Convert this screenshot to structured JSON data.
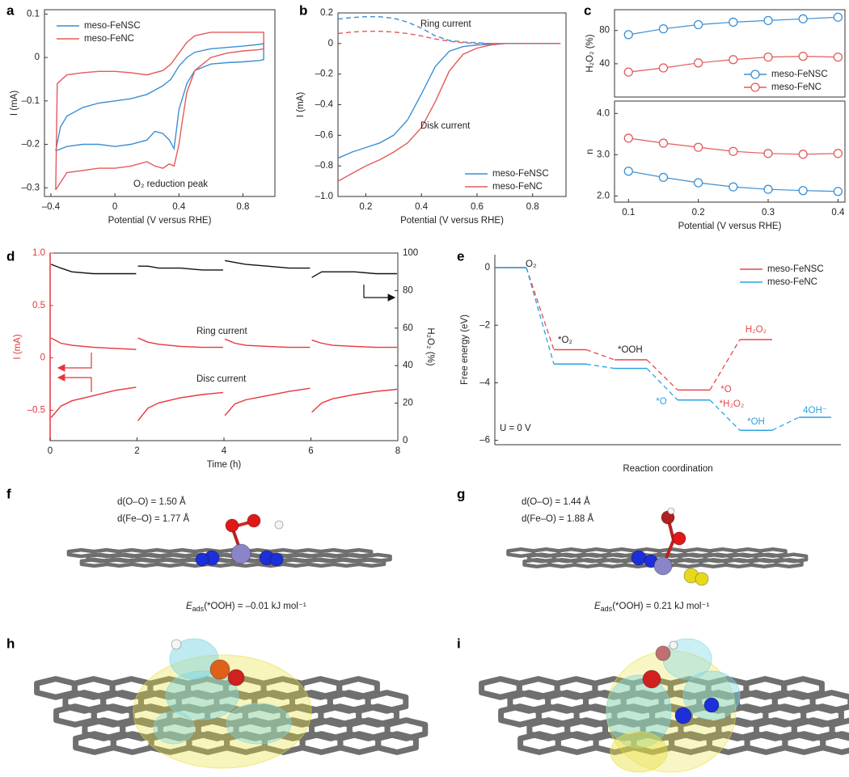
{
  "chart_data": [
    {
      "type": "line",
      "panel": "a",
      "xlabel": "Potential (V versus RHE)",
      "ylabel": "I (mA)",
      "xlim": [
        -0.44,
        1.0
      ],
      "ylim": [
        -0.32,
        0.11
      ],
      "xticks": [
        {
          "value": -0.4,
          "label": "–0.4"
        },
        0,
        0.4,
        0.8
      ],
      "yticks": [
        0.1,
        0,
        {
          "value": -0.1,
          "label": "–0.1"
        },
        {
          "value": -0.2,
          "label": "–0.2"
        },
        {
          "value": -0.3,
          "label": "–0.3"
        }
      ],
      "legend": "upper left",
      "annotations": [
        "O₂ reduction peak"
      ],
      "series": [
        {
          "name": "meso-FeNSC",
          "color": "#3b8fd4",
          "x": [
            -0.37,
            -0.34,
            -0.3,
            -0.2,
            -0.1,
            0,
            0.1,
            0.2,
            0.3,
            0.35,
            0.4,
            0.45,
            0.5,
            0.6,
            0.7,
            0.8,
            0.9,
            0.93,
            0.93,
            0.9,
            0.8,
            0.7,
            0.6,
            0.5,
            0.45,
            0.4,
            0.37,
            0.34,
            0.3,
            0.25,
            0.2,
            0.1,
            0,
            -0.1,
            -0.2,
            -0.3,
            -0.37
          ],
          "values": [
            -0.215,
            -0.16,
            -0.135,
            -0.115,
            -0.105,
            -0.1,
            -0.095,
            -0.085,
            -0.065,
            -0.05,
            -0.02,
            0.0,
            0.012,
            0.02,
            0.023,
            0.026,
            0.03,
            0.032,
            -0.005,
            -0.007,
            -0.01,
            -0.012,
            -0.015,
            -0.03,
            -0.06,
            -0.12,
            -0.21,
            -0.19,
            -0.175,
            -0.17,
            -0.19,
            -0.2,
            -0.205,
            -0.2,
            -0.2,
            -0.205,
            -0.215
          ]
        },
        {
          "name": "meso-FeNC",
          "color": "#e55a5a",
          "x": [
            -0.37,
            -0.36,
            -0.3,
            -0.2,
            -0.1,
            0,
            0.1,
            0.2,
            0.3,
            0.35,
            0.4,
            0.45,
            0.5,
            0.6,
            0.7,
            0.8,
            0.9,
            0.93,
            0.93,
            0.9,
            0.8,
            0.7,
            0.6,
            0.5,
            0.45,
            0.42,
            0.4,
            0.37,
            0.34,
            0.3,
            0.25,
            0.2,
            0.1,
            0,
            -0.1,
            -0.2,
            -0.3,
            -0.37
          ],
          "values": [
            -0.305,
            -0.06,
            -0.04,
            -0.035,
            -0.032,
            -0.032,
            -0.035,
            -0.04,
            -0.03,
            -0.015,
            0.01,
            0.035,
            0.05,
            0.058,
            0.058,
            0.058,
            0.058,
            0.058,
            0.02,
            0.018,
            0.015,
            0.01,
            0.0,
            -0.03,
            -0.08,
            -0.15,
            -0.2,
            -0.25,
            -0.245,
            -0.255,
            -0.25,
            -0.24,
            -0.25,
            -0.255,
            -0.255,
            -0.26,
            -0.265,
            -0.305
          ]
        }
      ]
    },
    {
      "type": "line",
      "panel": "b",
      "xlabel": "Potential (V versus RHE)",
      "ylabel": "I (mA)",
      "xlim": [
        0.1,
        0.92
      ],
      "ylim": [
        -1.0,
        0.2
      ],
      "xticks": [
        0.2,
        0.4,
        0.6,
        0.8
      ],
      "yticks": [
        0.2,
        0,
        {
          "value": -0.2,
          "label": "–0.2"
        },
        {
          "value": -0.4,
          "label": "–0.4"
        },
        {
          "value": -0.6,
          "label": "–0.6"
        },
        {
          "value": -0.8,
          "label": "–0.8"
        },
        {
          "value": -1.0,
          "label": "–1.0"
        }
      ],
      "legend": "lower right",
      "annotations": [
        "Ring current",
        "Disk current"
      ],
      "x": [
        0.1,
        0.15,
        0.2,
        0.25,
        0.3,
        0.35,
        0.4,
        0.45,
        0.5,
        0.55,
        0.6,
        0.65,
        0.7,
        0.75,
        0.8,
        0.85,
        0.9
      ],
      "series": [
        {
          "name": "meso-FeNSC",
          "color": "#3b8fd4",
          "values": [
            -0.75,
            -0.71,
            -0.68,
            -0.65,
            -0.6,
            -0.5,
            -0.33,
            -0.15,
            -0.05,
            -0.02,
            -0.01,
            -0.005,
            0,
            0,
            0,
            0,
            0
          ]
        },
        {
          "name": "meso-FeNC",
          "color": "#e55a5a",
          "values": [
            -0.9,
            -0.85,
            -0.8,
            -0.76,
            -0.71,
            -0.65,
            -0.55,
            -0.38,
            -0.18,
            -0.07,
            -0.03,
            -0.01,
            0,
            0,
            0,
            0,
            0
          ]
        },
        {
          "color": "#3b8fd4",
          "dash": true,
          "values": [
            0.16,
            0.17,
            0.175,
            0.175,
            0.165,
            0.14,
            0.1,
            0.05,
            0.02,
            0.01,
            0.005,
            0,
            0,
            0,
            0,
            0,
            0
          ]
        },
        {
          "color": "#e55a5a",
          "dash": true,
          "values": [
            0.065,
            0.075,
            0.08,
            0.08,
            0.075,
            0.065,
            0.05,
            0.03,
            0.015,
            0.005,
            0,
            0,
            0,
            0,
            0,
            0,
            0
          ]
        }
      ]
    },
    {
      "type": "line",
      "panel": "c",
      "ylabel": "H₂O₂ (%)",
      "markers": true,
      "xlim": [
        0.08,
        0.41
      ],
      "ylim": [
        0,
        105
      ],
      "yticks": [
        40,
        80
      ],
      "legend": "lower right",
      "x": [
        0.1,
        0.15,
        0.2,
        0.25,
        0.3,
        0.35,
        0.4
      ],
      "series": [
        {
          "name": "meso-FeNSC",
          "color": "#3b8fd4",
          "values": [
            75,
            82,
            87,
            90,
            92,
            94,
            96
          ]
        },
        {
          "name": "meso-FeNC",
          "color": "#e55a5a",
          "values": [
            30,
            35,
            41,
            45,
            48,
            49,
            48
          ]
        }
      ]
    },
    {
      "type": "line",
      "xlabel": "Potential (V versus RHE)",
      "ylabel": "n",
      "markers": true,
      "xlim": [
        0.08,
        0.41
      ],
      "ylim": [
        1.85,
        4.3
      ],
      "xticks": [
        0.1,
        0.2,
        0.3,
        0.4
      ],
      "yticks": [
        {
          "value": 2,
          "label": "2.0"
        },
        {
          "value": 3,
          "label": "3.0"
        },
        {
          "value": 4,
          "label": "4.0"
        }
      ],
      "x": [
        0.1,
        0.15,
        0.2,
        0.25,
        0.3,
        0.35,
        0.4
      ],
      "series": [
        {
          "color": "#3b8fd4",
          "values": [
            2.6,
            2.45,
            2.32,
            2.22,
            2.16,
            2.13,
            2.11
          ]
        },
        {
          "color": "#e55a5a",
          "values": [
            3.4,
            3.28,
            3.18,
            3.08,
            3.03,
            3.01,
            3.03
          ]
        }
      ]
    },
    {
      "type": "line",
      "panel": "d",
      "xlabel": "Time (h)",
      "ylabel": "I (mA)",
      "y2label": "H₂O₂ (%)",
      "y_axis_color": "#e8343a",
      "xlim": [
        0,
        8
      ],
      "ylim": [
        -0.79,
        1.0
      ],
      "y2lim": [
        0,
        100
      ],
      "xticks": [
        0,
        2,
        4,
        6,
        8
      ],
      "yticks": [
        {
          "value": -0.5,
          "label": "–0.5"
        },
        0,
        0.5,
        {
          "value": 1.0,
          "label": "1.0"
        }
      ],
      "y2ticks": [
        0,
        20,
        40,
        60,
        80,
        100
      ],
      "annotations": [
        "Ring current",
        "Disc current"
      ],
      "x": [
        0.02,
        0.25,
        0.5,
        1,
        1.5,
        1.98,
        2,
        2.02,
        2.25,
        2.5,
        3,
        3.5,
        3.98,
        4,
        4.02,
        4.25,
        4.5,
        5,
        5.5,
        5.98,
        6,
        6.02,
        6.25,
        6.5,
        7,
        7.5,
        7.98
      ],
      "series": [
        {
          "color": "#111111",
          "axis": "y2",
          "values": [
            94,
            92,
            90,
            89,
            89,
            89,
            null,
            93,
            93,
            92,
            92,
            91,
            91,
            null,
            96,
            95,
            94,
            93,
            92,
            92,
            null,
            87,
            90,
            90,
            90,
            89,
            89
          ]
        },
        {
          "color": "#e8343a",
          "values": [
            0.19,
            0.14,
            0.12,
            0.1,
            0.09,
            0.08,
            null,
            0.19,
            0.15,
            0.13,
            0.11,
            0.1,
            0.1,
            null,
            0.18,
            0.14,
            0.12,
            0.11,
            0.1,
            0.1,
            null,
            0.17,
            0.14,
            0.12,
            0.11,
            0.1,
            0.1
          ]
        },
        {
          "color": "#e8343a",
          "values": [
            -0.57,
            -0.46,
            -0.41,
            -0.36,
            -0.31,
            -0.28,
            null,
            -0.6,
            -0.48,
            -0.43,
            -0.38,
            -0.35,
            -0.33,
            null,
            -0.55,
            -0.44,
            -0.4,
            -0.36,
            -0.32,
            -0.29,
            null,
            -0.52,
            -0.43,
            -0.39,
            -0.35,
            -0.32,
            -0.3
          ]
        }
      ]
    },
    {
      "type": "step",
      "panel": "e",
      "xlabel": "Reaction coordination",
      "ylabel": "Free energy (eV)",
      "ylim": [
        -6.15,
        0.45
      ],
      "yticks": [
        0,
        {
          "value": -2,
          "label": "–2"
        },
        {
          "value": -4,
          "label": "–4"
        },
        {
          "value": -6,
          "label": "–6"
        }
      ],
      "legend": "upper right",
      "annotations": [
        "O₂",
        "*O₂",
        "*OOH",
        "*O",
        "*O",
        "*H₂O₂",
        "H₂O₂",
        "*OH",
        "4OH⁻",
        "U = 0 V"
      ],
      "series": [
        {
          "name": "meso-FeNSC",
          "color": "#e8474a",
          "values": [
            0,
            -2.85,
            -3.2,
            -4.25,
            -2.5,
            null
          ]
        },
        {
          "name": "meso-FeNC",
          "color": "#2ba3de",
          "values": [
            0,
            -3.35,
            -3.5,
            -4.6,
            -5.65,
            -5.2
          ]
        }
      ]
    }
  ],
  "structures": [
    {
      "panel": "f",
      "lines": [
        "d(O–O) = 1.50 Å",
        "d(Fe–O) = 1.77 Å"
      ],
      "energy": {
        "symbol": "E",
        "subscript": "ads",
        "text": "(*OOH) = –0.01 kJ mol⁻¹"
      }
    },
    {
      "panel": "g",
      "lines": [
        "d(O–O) = 1.44 Å",
        "d(Fe–O) = 1.88 Å"
      ],
      "energy": {
        "symbol": "E",
        "subscript": "ads",
        "text": "(*OOH) = 0.21 kJ mol⁻¹"
      }
    },
    {
      "panel": "h"
    },
    {
      "panel": "i"
    }
  ]
}
